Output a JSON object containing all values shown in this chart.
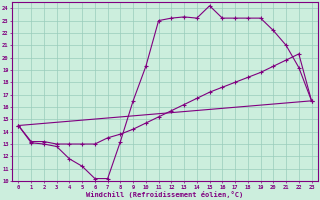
{
  "xlabel": "Windchill (Refroidissement éolien,°C)",
  "bg_color": "#cceedd",
  "line_color": "#800080",
  "grid_color": "#99ccbb",
  "xlim": [
    -0.5,
    23.5
  ],
  "ylim": [
    10,
    24.5
  ],
  "xticks": [
    0,
    1,
    2,
    3,
    4,
    5,
    6,
    7,
    8,
    9,
    10,
    11,
    12,
    13,
    14,
    15,
    16,
    17,
    18,
    19,
    20,
    21,
    22,
    23
  ],
  "yticks": [
    10,
    11,
    12,
    13,
    14,
    15,
    16,
    17,
    18,
    19,
    20,
    21,
    22,
    23,
    24
  ],
  "line1_x": [
    0,
    1,
    2,
    3,
    4,
    5,
    6,
    7,
    8,
    9,
    10,
    11,
    12,
    13,
    14,
    15,
    16,
    17,
    18,
    19,
    20,
    21,
    22,
    23
  ],
  "line1_y": [
    14.5,
    13.1,
    13.0,
    12.8,
    11.8,
    11.2,
    10.2,
    10.2,
    13.2,
    16.5,
    19.3,
    23.0,
    23.2,
    23.3,
    23.2,
    24.2,
    23.2,
    23.2,
    23.2,
    23.2,
    22.2,
    21.0,
    19.2,
    16.5
  ],
  "line2_x": [
    0,
    1,
    2,
    3,
    4,
    5,
    6,
    7,
    8,
    9,
    10,
    11,
    12,
    13,
    14,
    15,
    16,
    17,
    18,
    19,
    20,
    21,
    22,
    23
  ],
  "line2_y": [
    14.5,
    13.2,
    13.2,
    13.0,
    13.0,
    13.0,
    13.0,
    13.5,
    13.8,
    14.2,
    14.7,
    15.2,
    15.7,
    16.2,
    16.7,
    17.2,
    17.6,
    18.0,
    18.4,
    18.8,
    19.3,
    19.8,
    20.3,
    16.5
  ],
  "line3_x": [
    0,
    23
  ],
  "line3_y": [
    14.5,
    16.5
  ]
}
